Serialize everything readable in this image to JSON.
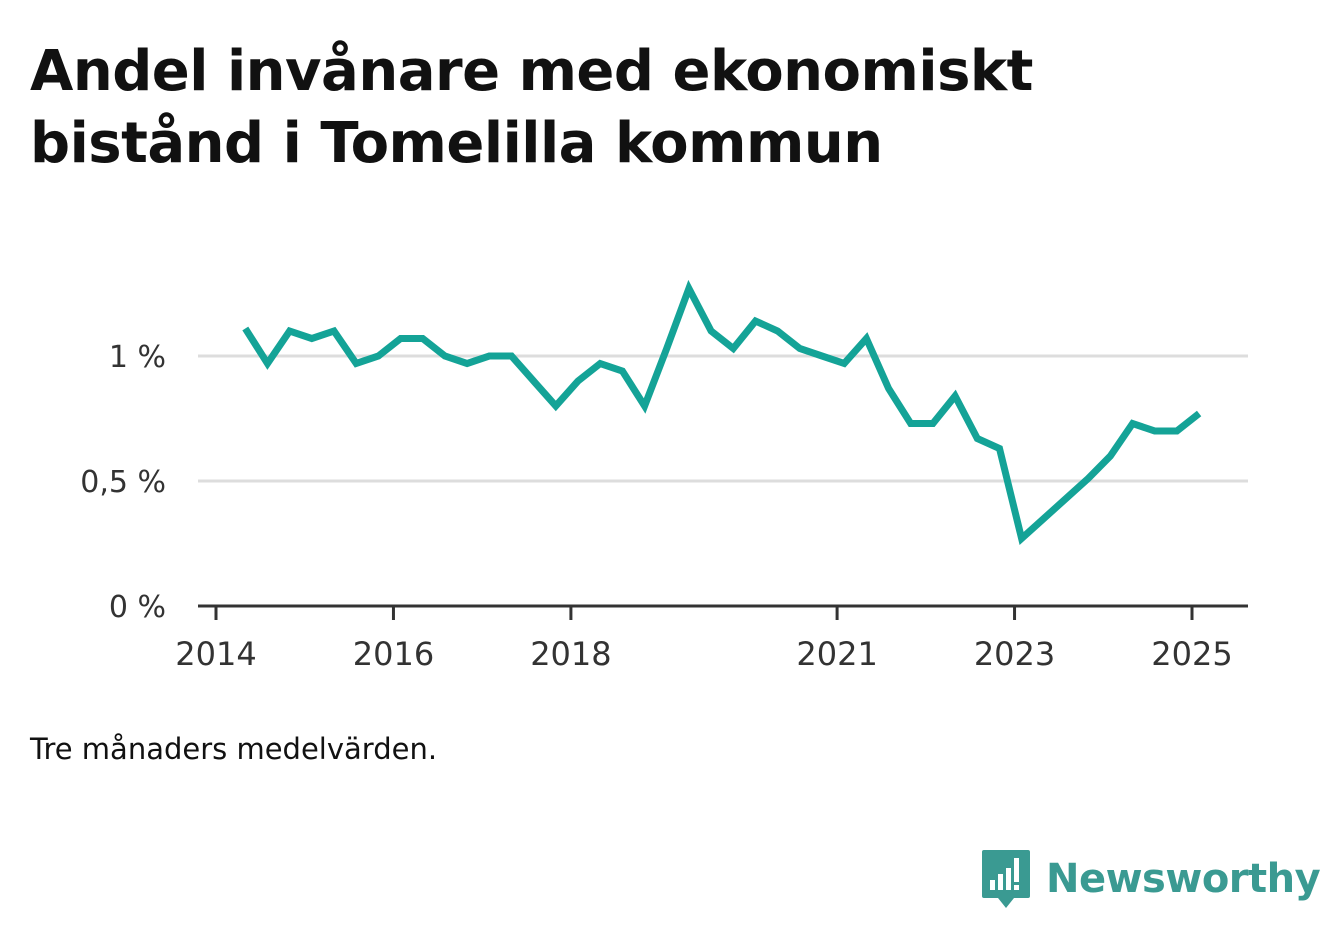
{
  "title": "Andel invånare med ekonomiskt bistånd i Tomelilla kommun",
  "note": "Tre månaders medelvärden.",
  "brand": {
    "name": "Newsworthy",
    "icon": "newsworthy-logo-icon",
    "color": "#3a9a92"
  },
  "chart_data": {
    "type": "line",
    "title": "Andel invånare med ekonomiskt bistånd i Tomelilla kommun",
    "xlabel": "",
    "ylabel": "",
    "ylim": [
      0,
      1.25
    ],
    "grid": true,
    "line_color": "#14a397",
    "y_ticks": [
      {
        "value": 0,
        "label": "0 %"
      },
      {
        "value": 0.5,
        "label": "0,5 %"
      },
      {
        "value": 1,
        "label": "1 %"
      }
    ],
    "x_ticks": [
      {
        "value": 2014,
        "label": "2014"
      },
      {
        "value": 2016,
        "label": "2016"
      },
      {
        "value": 2018,
        "label": "2018"
      },
      {
        "value": 2021,
        "label": "2021"
      },
      {
        "value": 2023,
        "label": "2023"
      },
      {
        "value": 2025,
        "label": "2025"
      }
    ],
    "series": [
      {
        "x": [
          2014.33,
          2014.58,
          2014.83,
          2015.08,
          2015.33,
          2015.58,
          2015.83,
          2016.08,
          2016.33,
          2016.58,
          2016.83,
          2017.08,
          2017.33,
          2017.58,
          2017.83,
          2018.08,
          2018.33,
          2018.58,
          2018.83,
          2019.08,
          2019.33,
          2019.58,
          2019.83,
          2020.08,
          2020.33,
          2020.58,
          2020.83,
          2021.08,
          2021.33,
          2021.58,
          2021.83,
          2022.08,
          2022.33,
          2022.58,
          2022.83,
          2023.08,
          2023.33,
          2023.58,
          2023.83,
          2024.08,
          2024.33,
          2024.58,
          2024.83,
          2025.08
        ],
        "values": [
          1.11,
          0.97,
          1.1,
          1.07,
          1.1,
          0.97,
          1.0,
          1.07,
          1.07,
          1.0,
          0.97,
          1.0,
          1.0,
          0.9,
          0.8,
          0.9,
          0.97,
          0.94,
          0.8,
          1.03,
          1.27,
          1.1,
          1.03,
          1.14,
          1.1,
          1.03,
          1.0,
          0.97,
          1.07,
          0.87,
          0.73,
          0.73,
          0.84,
          0.67,
          0.63,
          0.27,
          0.35,
          0.43,
          0.51,
          0.6,
          0.73,
          0.7,
          0.7,
          0.77
        ]
      }
    ]
  }
}
